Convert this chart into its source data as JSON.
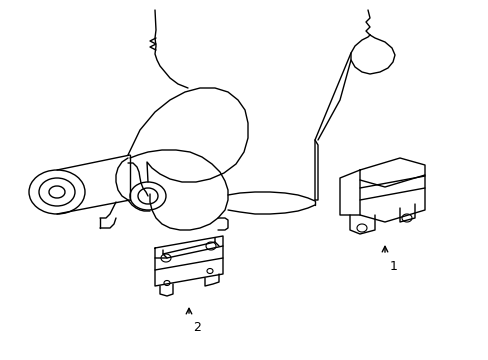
{
  "background_color": "#ffffff",
  "line_color": "#000000",
  "line_width": 1.0,
  "fig_width": 4.89,
  "fig_height": 3.6,
  "dpi": 100,
  "label1": "1",
  "label2": "2"
}
